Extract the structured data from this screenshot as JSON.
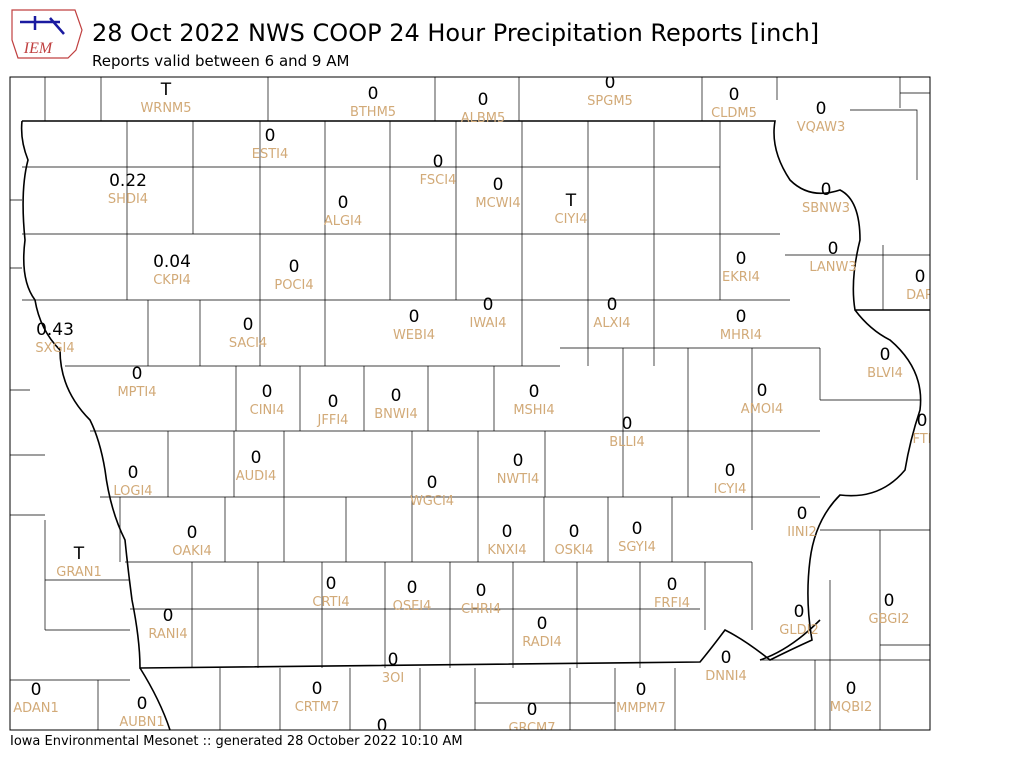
{
  "header": {
    "logo": "IEM",
    "title": "28 Oct 2022 NWS COOP 24 Hour Precipitation Reports [inch]",
    "subtitle": "Reports valid between 6 and 9 AM"
  },
  "footer": "Iowa Environmental Mesonet :: generated 28 October 2022 10:10 AM",
  "stations": [
    {
      "value": "T",
      "id": "WRNM5"
    },
    {
      "value": "0",
      "id": "BTHM5"
    },
    {
      "value": "0",
      "id": "ALBM5"
    },
    {
      "value": "0",
      "id": "SPGM5"
    },
    {
      "value": "0",
      "id": "CLDM5"
    },
    {
      "value": "0",
      "id": "VQAW3"
    },
    {
      "value": "0",
      "id": "ESTI4"
    },
    {
      "value": "0",
      "id": "FSCI4"
    },
    {
      "value": "0.22",
      "id": "SHDI4"
    },
    {
      "value": "0",
      "id": "MCWI4"
    },
    {
      "value": "T",
      "id": "CIYI4"
    },
    {
      "value": "0",
      "id": "ALGI4"
    },
    {
      "value": "0",
      "id": "SBNW3"
    },
    {
      "value": "0",
      "id": "LANW3"
    },
    {
      "value": "0",
      "id": "EKRI4"
    },
    {
      "value": "0.04",
      "id": "CKPI4"
    },
    {
      "value": "0",
      "id": "POCI4"
    },
    {
      "value": "0",
      "id": "DAR"
    },
    {
      "value": "0",
      "id": "ALXI4"
    },
    {
      "value": "0",
      "id": "IWAI4"
    },
    {
      "value": "0",
      "id": "WEBI4"
    },
    {
      "value": "0",
      "id": "MHRI4"
    },
    {
      "value": "0",
      "id": "SACI4"
    },
    {
      "value": "0.43",
      "id": "SXGI4"
    },
    {
      "value": "0",
      "id": "BLVI4"
    },
    {
      "value": "0",
      "id": "MPTI4"
    },
    {
      "value": "0",
      "id": "CINI4"
    },
    {
      "value": "0",
      "id": "AMOI4"
    },
    {
      "value": "0",
      "id": "MSHI4"
    },
    {
      "value": "0",
      "id": "BNWI4"
    },
    {
      "value": "0",
      "id": "JFFI4"
    },
    {
      "value": "0",
      "id": "FTI"
    },
    {
      "value": "0",
      "id": "BLLI4"
    },
    {
      "value": "0",
      "id": "AUDI4"
    },
    {
      "value": "0",
      "id": "NWTI4"
    },
    {
      "value": "0",
      "id": "ICYI4"
    },
    {
      "value": "0",
      "id": "LOGI4"
    },
    {
      "value": "0",
      "id": "WGCI4"
    },
    {
      "value": "0",
      "id": "IINI2"
    },
    {
      "value": "0",
      "id": "OAKI4"
    },
    {
      "value": "0",
      "id": "KNXI4"
    },
    {
      "value": "0",
      "id": "OSKI4"
    },
    {
      "value": "0",
      "id": "SGYI4"
    },
    {
      "value": "T",
      "id": "GRAN1"
    },
    {
      "value": "0",
      "id": "CRTI4"
    },
    {
      "value": "0",
      "id": "OSEI4"
    },
    {
      "value": "0",
      "id": "CHRI4"
    },
    {
      "value": "0",
      "id": "FRFI4"
    },
    {
      "value": "0",
      "id": "GLDI2"
    },
    {
      "value": "0",
      "id": "GBGI2"
    },
    {
      "value": "0",
      "id": "RANI4"
    },
    {
      "value": "0",
      "id": "RADI4"
    },
    {
      "value": "0",
      "id": "3OI"
    },
    {
      "value": "0",
      "id": "DNNI4"
    },
    {
      "value": "0",
      "id": "ADAN1"
    },
    {
      "value": "0",
      "id": "CRTM7"
    },
    {
      "value": "0",
      "id": "MMPM7"
    },
    {
      "value": "0",
      "id": "MQBI2"
    },
    {
      "value": "0",
      "id": "AUBN1"
    },
    {
      "value": "0",
      "id": "GRCM7"
    },
    {
      "value": "0",
      "id": null
    }
  ]
}
